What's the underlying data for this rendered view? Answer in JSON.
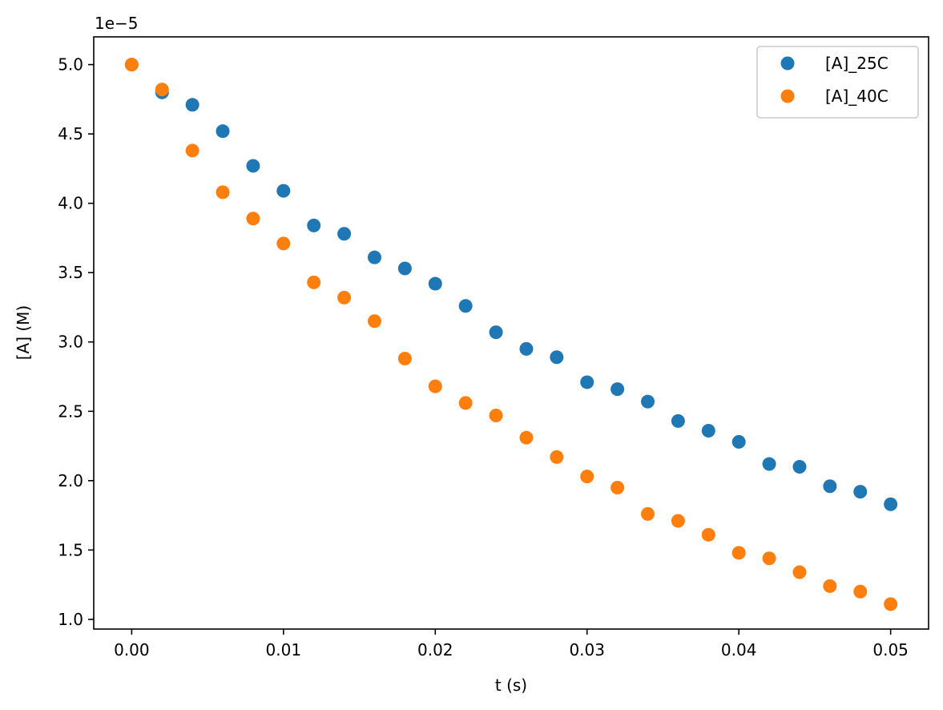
{
  "chart_data": {
    "type": "scatter",
    "title": "",
    "xlabel": "t (s)",
    "ylabel": "[A] (M)",
    "y_offset_label": "1e−5",
    "xlim": [
      -0.0025,
      0.0525
    ],
    "ylim": [
      9.3e-06,
      5.2e-05
    ],
    "xticks": [
      0.0,
      0.01,
      0.02,
      0.03,
      0.04,
      0.05
    ],
    "xtick_labels": [
      "0.00",
      "0.01",
      "0.02",
      "0.03",
      "0.04",
      "0.05"
    ],
    "yticks": [
      1e-05,
      1.5e-05,
      2e-05,
      2.5e-05,
      3e-05,
      3.5e-05,
      4e-05,
      4.5e-05,
      5e-05
    ],
    "ytick_labels": [
      "1.0",
      "1.5",
      "2.0",
      "2.5",
      "3.0",
      "3.5",
      "4.0",
      "4.5",
      "5.0"
    ],
    "grid": false,
    "legend_position": "top-right",
    "x": [
      0.0,
      0.002,
      0.004,
      0.006,
      0.008,
      0.01,
      0.012,
      0.014,
      0.016,
      0.018,
      0.02,
      0.022,
      0.024,
      0.026,
      0.028,
      0.03,
      0.032,
      0.034,
      0.036,
      0.038,
      0.04,
      0.042,
      0.044,
      0.046,
      0.048,
      0.05
    ],
    "series": [
      {
        "name": "[A]_25C",
        "color": "#1f77b4",
        "values": [
          5e-05,
          4.8e-05,
          4.71e-05,
          4.52e-05,
          4.27e-05,
          4.09e-05,
          3.84e-05,
          3.78e-05,
          3.61e-05,
          3.53e-05,
          3.42e-05,
          3.26e-05,
          3.07e-05,
          2.95e-05,
          2.89e-05,
          2.71e-05,
          2.66e-05,
          2.57e-05,
          2.43e-05,
          2.36e-05,
          2.28e-05,
          2.12e-05,
          2.1e-05,
          1.96e-05,
          1.92e-05,
          1.83e-05
        ]
      },
      {
        "name": "[A]_40C",
        "color": "#ff7f0e",
        "values": [
          5e-05,
          4.82e-05,
          4.38e-05,
          4.08e-05,
          3.89e-05,
          3.71e-05,
          3.43e-05,
          3.32e-05,
          3.15e-05,
          2.88e-05,
          2.68e-05,
          2.56e-05,
          2.47e-05,
          2.31e-05,
          2.17e-05,
          2.03e-05,
          1.95e-05,
          1.76e-05,
          1.71e-05,
          1.61e-05,
          1.48e-05,
          1.44e-05,
          1.34e-05,
          1.24e-05,
          1.2e-05,
          1.11e-05
        ]
      }
    ]
  }
}
